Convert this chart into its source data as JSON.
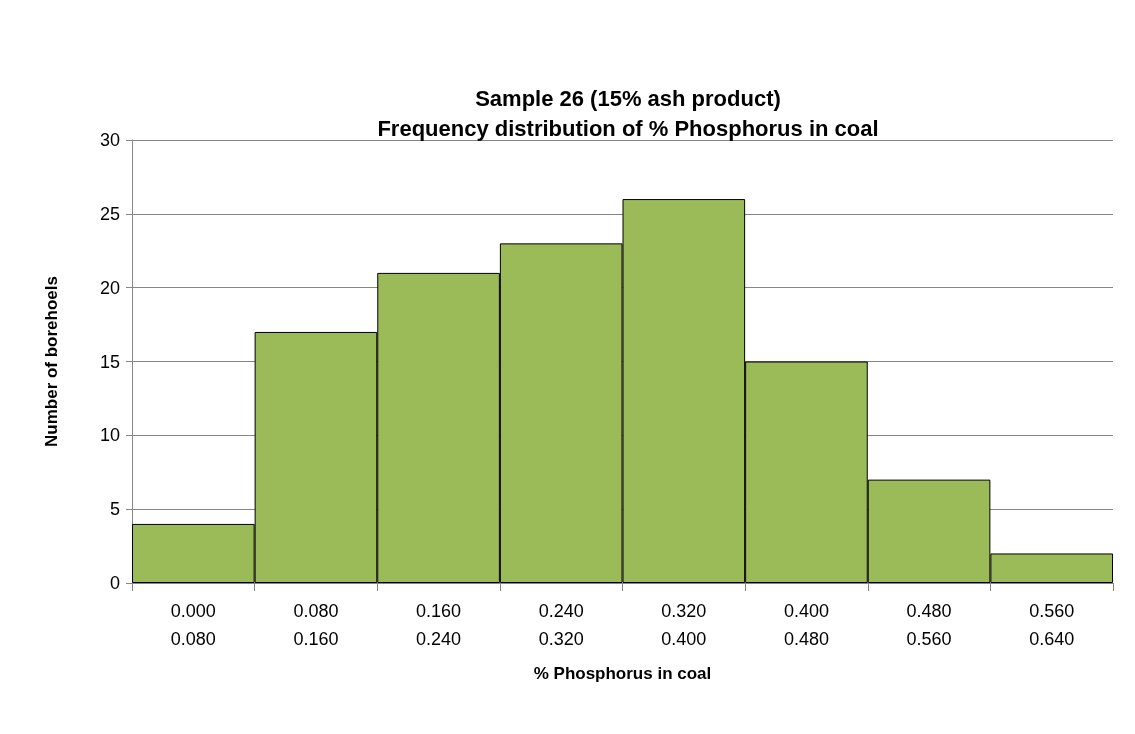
{
  "chart_data": {
    "type": "bar",
    "title": "Sample 26 (15% ash product)\nFrequency distribution of % Phosphorus in coal",
    "xlabel": "% Phosphorus in coal",
    "ylabel": "Number of borehoels",
    "categories": [
      "0.000\n0.080",
      "0.080\n0.160",
      "0.160\n0.240",
      "0.240\n0.320",
      "0.320\n0.400",
      "0.400\n0.480",
      "0.480\n0.560",
      "0.560\n0.640"
    ],
    "values": [
      4,
      17,
      21,
      23,
      26,
      15,
      7,
      2
    ],
    "color": "#9bbb59",
    "ylim": [
      0,
      30
    ],
    "yticks": [
      0,
      5,
      10,
      15,
      20,
      25,
      30
    ],
    "grid": "y"
  }
}
